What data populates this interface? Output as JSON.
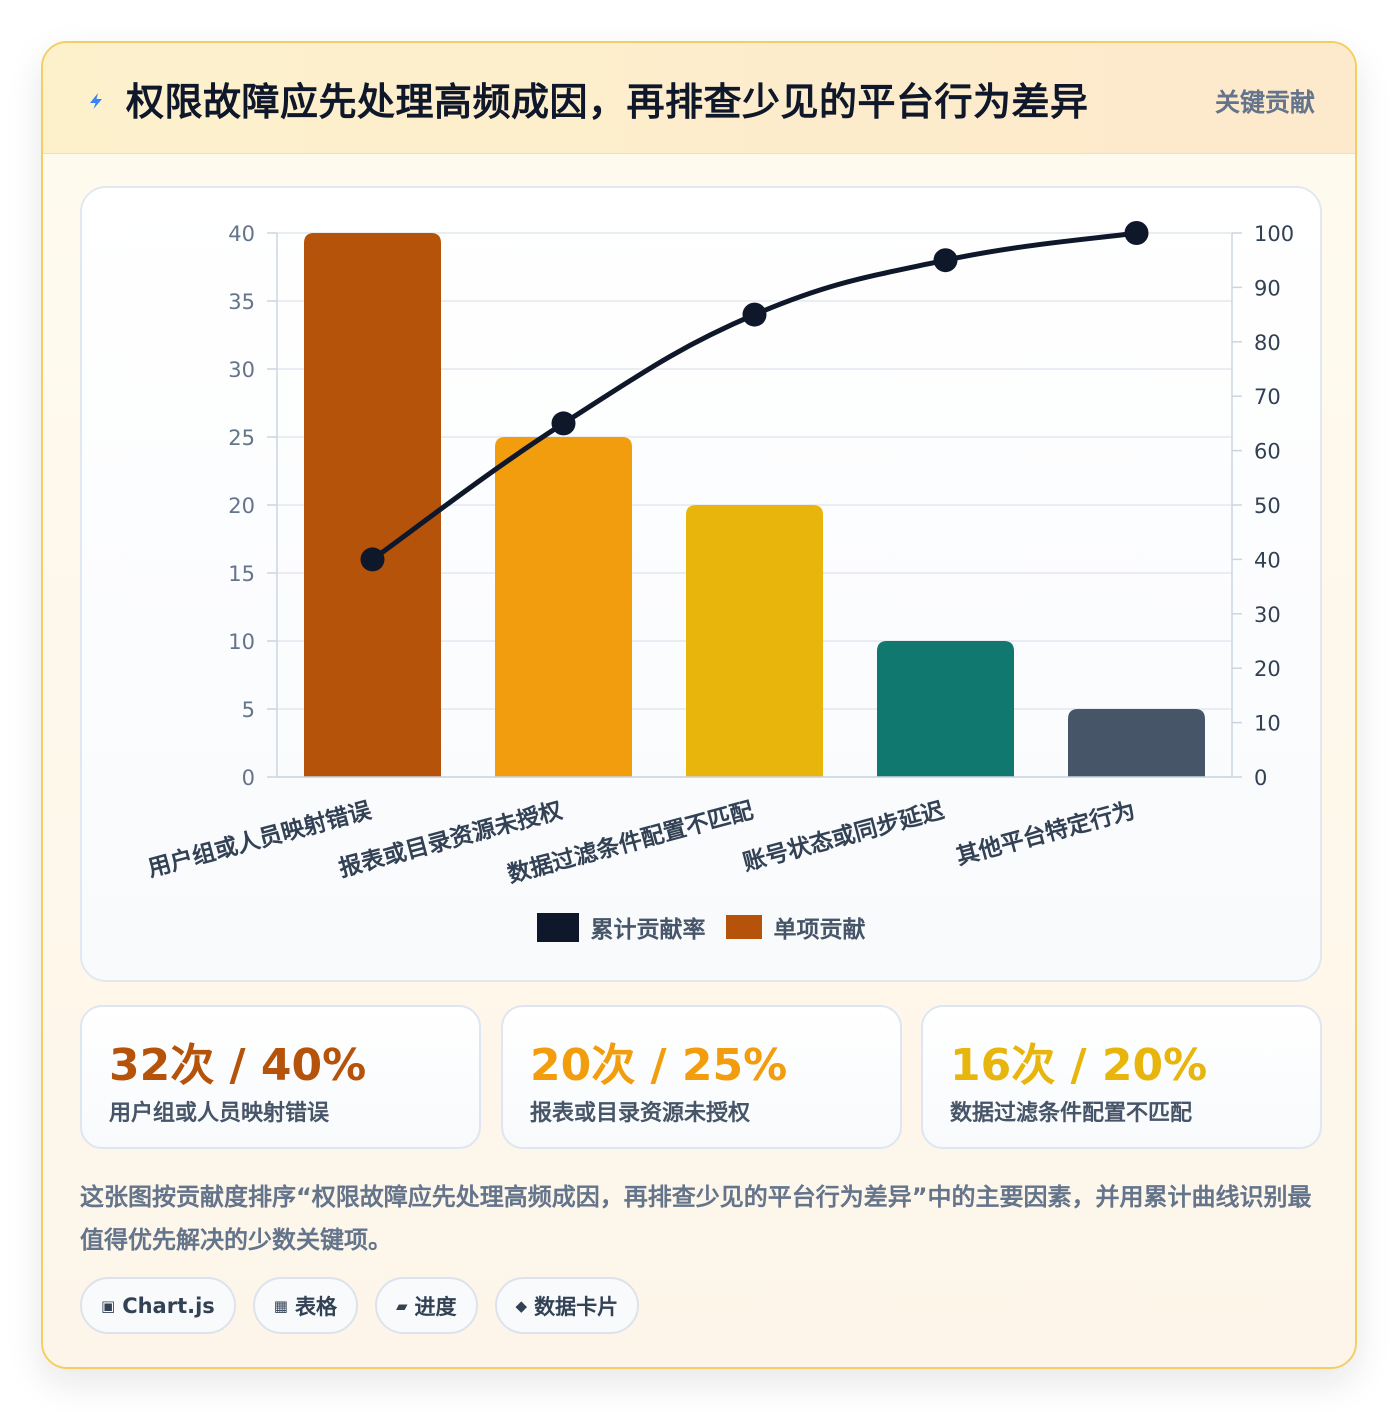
{
  "header": {
    "title": "权限故障应先处理高频成因，再排查少见的平台行为差异",
    "badge": "关键贡献",
    "icon": "lightning-icon"
  },
  "chart_data": {
    "type": "bar",
    "categories": [
      "用户组或人员映射错误",
      "报表或目录资源未授权",
      "数据过滤条件配置不匹配",
      "账号状态或同步延迟",
      "其他平台特定行为"
    ],
    "series": [
      {
        "name": "单项贡献",
        "type": "bar",
        "axis": "left",
        "values": [
          40,
          25,
          20,
          10,
          5
        ],
        "colors": [
          "#b5530a",
          "#f19d0e",
          "#e7b50b",
          "#10786f",
          "#475569"
        ]
      },
      {
        "name": "累计贡献率",
        "type": "line",
        "axis": "right",
        "values": [
          40,
          65,
          85,
          95,
          100
        ],
        "color": "#0f172a"
      }
    ],
    "y_left": {
      "min": 0,
      "max": 40,
      "ticks": [
        0,
        5,
        10,
        15,
        20,
        25,
        30,
        35,
        40
      ]
    },
    "y_right": {
      "min": 0,
      "max": 100,
      "ticks": [
        0,
        10,
        20,
        30,
        40,
        50,
        60,
        70,
        80,
        90,
        100
      ]
    },
    "grid": true,
    "legend_position": "bottom"
  },
  "legend": {
    "items": [
      {
        "label": "累计贡献率",
        "color": "#0f172a"
      },
      {
        "label": "单项贡献",
        "color": "#b5530a"
      }
    ]
  },
  "stats": [
    {
      "value": "32次 / 40%",
      "label": "用户组或人员映射错误",
      "color": "#b5530a"
    },
    {
      "value": "20次 / 25%",
      "label": "报表或目录资源未授权",
      "color": "#f19d0e"
    },
    {
      "value": "16次 / 20%",
      "label": "数据过滤条件配置不匹配",
      "color": "#e7b50b"
    }
  ],
  "description": "这张图按贡献度排序“权限故障应先处理高频成因，再排查少见的平台行为差异”中的主要因素，并用累计曲线识别最值得优先解决的少数关键项。",
  "tags": [
    {
      "icon": "▣",
      "label": "Chart.js"
    },
    {
      "icon": "▦",
      "label": "表格"
    },
    {
      "icon": "▰",
      "label": "进度"
    },
    {
      "icon": "◆",
      "label": "数据卡片"
    }
  ]
}
